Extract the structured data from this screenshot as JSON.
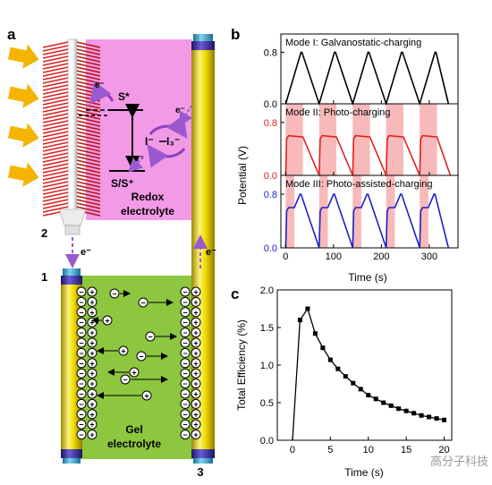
{
  "panel_a": {
    "letter": "a",
    "labels": {
      "s_star": "S*",
      "s_s_plus": "S/S⁺",
      "redox_couple_i": "I⁻",
      "redox_couple_i3": "I₃⁻",
      "electron": "e⁻",
      "redox_electrolyte_line1": "Redox",
      "redox_electrolyte_line2": "electrolyte",
      "gel_electrolyte_line1": "Gel",
      "gel_electrolyte_line2": "electrolyte",
      "electrode_1": "1",
      "electrode_2": "2",
      "electrode_3": "3",
      "plus": "+",
      "minus": "−"
    },
    "colors": {
      "redox_region": "#f29ae6",
      "gel_region": "#8dc63f",
      "electrode": "#e8d400",
      "electrode_cap": "#2b9bc8",
      "electrode_band": "#3c2f8f",
      "arrow_purple": "#9b59d0",
      "sunlight": "#f5b400",
      "nanotube": "#d9211c"
    }
  },
  "panel_b": {
    "letter": "b",
    "ylabel": "Potential (V)",
    "xlabel": "Time (s)",
    "modes": [
      {
        "title": "Mode I: Galvanostatic-charging",
        "color": "#000000"
      },
      {
        "title": "Mode II: Photo-charging",
        "color": "#e02020"
      },
      {
        "title": "Mode III: Photo-assisted-charging",
        "color": "#1f1fc8"
      }
    ],
    "highlight_color": "#f7b9b9"
  },
  "panel_c": {
    "letter": "c",
    "ylabel": "Total Efficiency (%)",
    "xlabel": "Time (s)",
    "line_color": "#000000"
  },
  "watermark": "高分子科技",
  "chart_data": [
    {
      "type": "line",
      "panel": "b-Mode I",
      "title": "Mode I: Galvanostatic-charging",
      "xlabel": "Time (s)",
      "ylabel": "Potential (V)",
      "xlim": [
        -10,
        360
      ],
      "ylim": [
        0,
        1.0
      ],
      "x_ticks": [
        0,
        100,
        200,
        300
      ],
      "y_ticks": [
        0.0,
        0.8
      ],
      "series": [
        {
          "values_x": [
            0,
            32,
            34,
            70,
            102,
            104,
            140,
            172,
            174,
            210,
            242,
            244,
            280,
            312,
            314,
            340
          ],
          "values_y": [
            0.0,
            0.8,
            0.8,
            0.0,
            0.8,
            0.8,
            0.0,
            0.8,
            0.8,
            0.0,
            0.8,
            0.8,
            0.0,
            0.8,
            0.8,
            0.0
          ]
        }
      ]
    },
    {
      "type": "line",
      "panel": "b-Mode II",
      "title": "Mode II: Photo-charging",
      "xlabel": "Time (s)",
      "ylabel": "Potential (V)",
      "xlim": [
        -10,
        360
      ],
      "ylim": [
        0,
        1.0
      ],
      "x_ticks": [
        0,
        100,
        200,
        300
      ],
      "y_ticks": [
        0.0,
        0.8
      ],
      "light_on_intervals": [
        [
          0,
          36
        ],
        [
          70,
          106
        ],
        [
          140,
          176
        ],
        [
          210,
          246
        ],
        [
          280,
          316
        ]
      ],
      "series": [
        {
          "values_x": [
            0,
            2,
            6,
            36,
            70,
            72,
            76,
            106,
            140,
            142,
            146,
            176,
            210,
            212,
            216,
            246,
            280,
            282,
            286,
            316,
            344
          ],
          "values_y": [
            0.0,
            0.55,
            0.6,
            0.58,
            0.0,
            0.55,
            0.6,
            0.58,
            0.0,
            0.55,
            0.6,
            0.58,
            0.0,
            0.55,
            0.6,
            0.58,
            0.0,
            0.55,
            0.6,
            0.58,
            0.0
          ]
        }
      ]
    },
    {
      "type": "line",
      "panel": "b-Mode III",
      "title": "Mode III: Photo-assisted-charging",
      "xlabel": "Time (s)",
      "ylabel": "Potential (V)",
      "xlim": [
        -10,
        360
      ],
      "ylim": [
        0,
        1.0
      ],
      "x_ticks": [
        0,
        100,
        200,
        300
      ],
      "y_ticks": [
        0.0,
        0.8
      ],
      "light_on_intervals": [
        [
          0,
          18
        ],
        [
          70,
          88
        ],
        [
          140,
          158
        ],
        [
          210,
          228
        ],
        [
          280,
          298
        ]
      ],
      "series": [
        {
          "values_x": [
            0,
            2,
            6,
            18,
            30,
            32,
            70,
            72,
            76,
            88,
            100,
            102,
            140,
            142,
            146,
            158,
            170,
            172,
            210,
            212,
            216,
            228,
            240,
            242,
            280,
            282,
            286,
            298,
            310,
            312,
            340
          ],
          "values_y": [
            0.0,
            0.55,
            0.6,
            0.6,
            0.8,
            0.8,
            0.0,
            0.55,
            0.6,
            0.6,
            0.8,
            0.8,
            0.0,
            0.55,
            0.6,
            0.6,
            0.8,
            0.8,
            0.0,
            0.55,
            0.6,
            0.6,
            0.8,
            0.8,
            0.0,
            0.55,
            0.6,
            0.6,
            0.8,
            0.8,
            0.0
          ]
        }
      ]
    },
    {
      "type": "line",
      "panel": "c",
      "xlabel": "Time (s)",
      "ylabel": "Total Efficiency (%)",
      "xlim": [
        -2,
        21
      ],
      "ylim": [
        0,
        2.0
      ],
      "x_ticks": [
        0,
        5,
        10,
        15,
        20
      ],
      "y_ticks": [
        0.0,
        0.5,
        1.0,
        1.5,
        2.0
      ],
      "series": [
        {
          "values_x": [
            0,
            1,
            2,
            3,
            4,
            5,
            6,
            7,
            8,
            9,
            10,
            11,
            12,
            13,
            14,
            15,
            16,
            17,
            18,
            19,
            20
          ],
          "values_y": [
            0.0,
            1.6,
            1.75,
            1.42,
            1.23,
            1.07,
            0.95,
            0.85,
            0.76,
            0.68,
            0.6,
            0.55,
            0.5,
            0.46,
            0.42,
            0.39,
            0.36,
            0.33,
            0.31,
            0.29,
            0.27
          ]
        }
      ]
    }
  ]
}
